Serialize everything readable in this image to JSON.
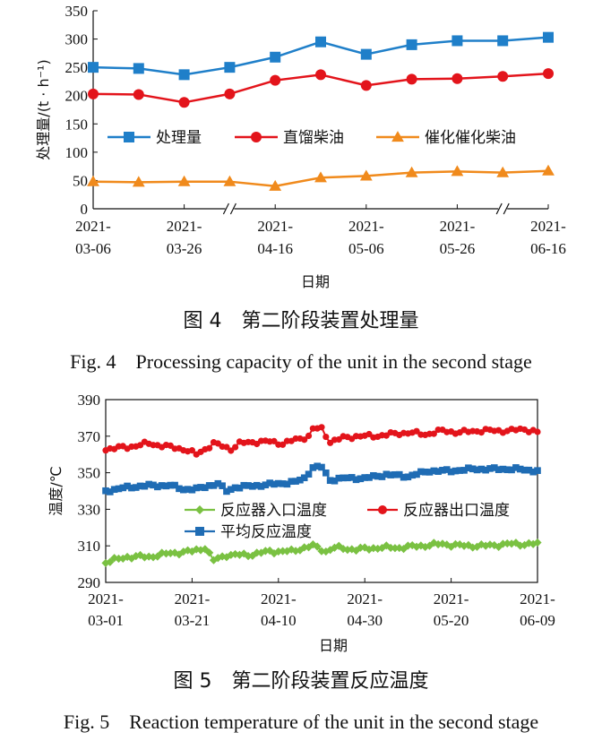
{
  "figures": [
    {
      "caption_cn": "图 4　第二阶段装置处理量",
      "caption_en": "Fig. 4　Processing capacity of the unit in the second stage",
      "chart_data": {
        "type": "line",
        "xlabel": "日期",
        "ylabel": "处理量/(t · h⁻¹)",
        "ylim": [
          0,
          350
        ],
        "yticks": [
          0,
          50,
          100,
          150,
          200,
          250,
          300,
          350
        ],
        "xtick_labels": [
          [
            "2021-",
            "03-06"
          ],
          [
            "2021-",
            "03-26"
          ],
          [
            "2021-",
            "04-16"
          ],
          [
            "2021-",
            "05-06"
          ],
          [
            "2021-",
            "05-26"
          ],
          [
            "2021-",
            "06-16"
          ]
        ],
        "axis_breaks": true,
        "legend_position": "middle",
        "series": [
          {
            "name": "处理量",
            "color": "#1f7fc9",
            "marker": "square",
            "values": [
              250,
              248,
              237,
              250,
              268,
              295,
              273,
              290,
              297,
              297,
              303
            ]
          },
          {
            "name": "直馏柴油",
            "color": "#e3141b",
            "marker": "circle",
            "values": [
              203,
              202,
              188,
              203,
              227,
              237,
              218,
              229,
              230,
              234,
              239
            ]
          },
          {
            "name": "催化催化柴油",
            "color": "#f08a1c",
            "marker": "triangle",
            "values": [
              48,
              47,
              48,
              48,
              40,
              55,
              58,
              64,
              66,
              64,
              67
            ]
          }
        ]
      }
    },
    {
      "caption_cn": "图 5　第二阶段装置反应温度",
      "caption_en": "Fig. 5　Reaction temperature of the unit in the second stage",
      "chart_data": {
        "type": "line",
        "xlabel": "日期",
        "ylabel": "温度/℃",
        "ylim": [
          290,
          390
        ],
        "yticks": [
          290,
          310,
          330,
          350,
          370,
          390
        ],
        "xtick_labels": [
          [
            "2021-",
            "03-01"
          ],
          [
            "2021-",
            "03-21"
          ],
          [
            "2021-",
            "04-10"
          ],
          [
            "2021-",
            "04-30"
          ],
          [
            "2021-",
            "05-20"
          ],
          [
            "2021-",
            "06-09"
          ]
        ],
        "x_range_days": [
          0,
          100
        ],
        "legend_position": "middle-right",
        "series": [
          {
            "name": "反应器入口温度",
            "color": "#7ac142",
            "marker": "diamond",
            "anchors": [
              [
                0,
                301
              ],
              [
                5,
                304
              ],
              [
                10,
                304
              ],
              [
                15,
                306
              ],
              [
                20,
                307
              ],
              [
                23,
                309
              ],
              [
                25,
                302
              ],
              [
                28,
                305
              ],
              [
                33,
                305
              ],
              [
                38,
                307
              ],
              [
                43,
                307
              ],
              [
                46,
                309
              ],
              [
                48,
                310
              ],
              [
                51,
                307
              ],
              [
                53,
                309
              ],
              [
                58,
                308
              ],
              [
                63,
                309
              ],
              [
                68,
                309
              ],
              [
                73,
                310
              ],
              [
                78,
                311
              ],
              [
                83,
                310
              ],
              [
                88,
                310
              ],
              [
                93,
                311
              ],
              [
                97,
                311
              ],
              [
                100,
                311
              ]
            ],
            "jitter": 1.2
          },
          {
            "name": "反应器出口温度",
            "color": "#e3141b",
            "marker": "circle",
            "anchors": [
              [
                0,
                363
              ],
              [
                5,
                364
              ],
              [
                10,
                366
              ],
              [
                15,
                364
              ],
              [
                18,
                363
              ],
              [
                21,
                360
              ],
              [
                23,
                363
              ],
              [
                25,
                366
              ],
              [
                29,
                363
              ],
              [
                31,
                366
              ],
              [
                35,
                367
              ],
              [
                38,
                367
              ],
              [
                41,
                366
              ],
              [
                44,
                368
              ],
              [
                47,
                370
              ],
              [
                48,
                374
              ],
              [
                50,
                374
              ],
              [
                52,
                367
              ],
              [
                55,
                369
              ],
              [
                58,
                370
              ],
              [
                62,
                370
              ],
              [
                66,
                371
              ],
              [
                70,
                372
              ],
              [
                74,
                371
              ],
              [
                78,
                373
              ],
              [
                82,
                372
              ],
              [
                86,
                373
              ],
              [
                90,
                373
              ],
              [
                94,
                373
              ],
              [
                97,
                374
              ],
              [
                100,
                372
              ]
            ],
            "jitter": 1.3
          },
          {
            "name": "平均反应温度",
            "color": "#1f6cb4",
            "marker": "square",
            "anchors": [
              [
                0,
                340
              ],
              [
                5,
                342
              ],
              [
                10,
                343
              ],
              [
                15,
                343
              ],
              [
                18,
                341
              ],
              [
                21,
                341
              ],
              [
                24,
                343
              ],
              [
                26,
                344
              ],
              [
                28,
                340
              ],
              [
                30,
                342
              ],
              [
                35,
                343
              ],
              [
                40,
                344
              ],
              [
                44,
                345
              ],
              [
                46,
                347
              ],
              [
                48,
                353
              ],
              [
                50,
                353
              ],
              [
                52,
                346
              ],
              [
                55,
                347
              ],
              [
                60,
                347
              ],
              [
                65,
                349
              ],
              [
                70,
                348
              ],
              [
                75,
                351
              ],
              [
                80,
                351
              ],
              [
                85,
                352
              ],
              [
                90,
                352
              ],
              [
                95,
                352
              ],
              [
                100,
                351
              ]
            ],
            "jitter": 0.9
          }
        ]
      }
    }
  ]
}
